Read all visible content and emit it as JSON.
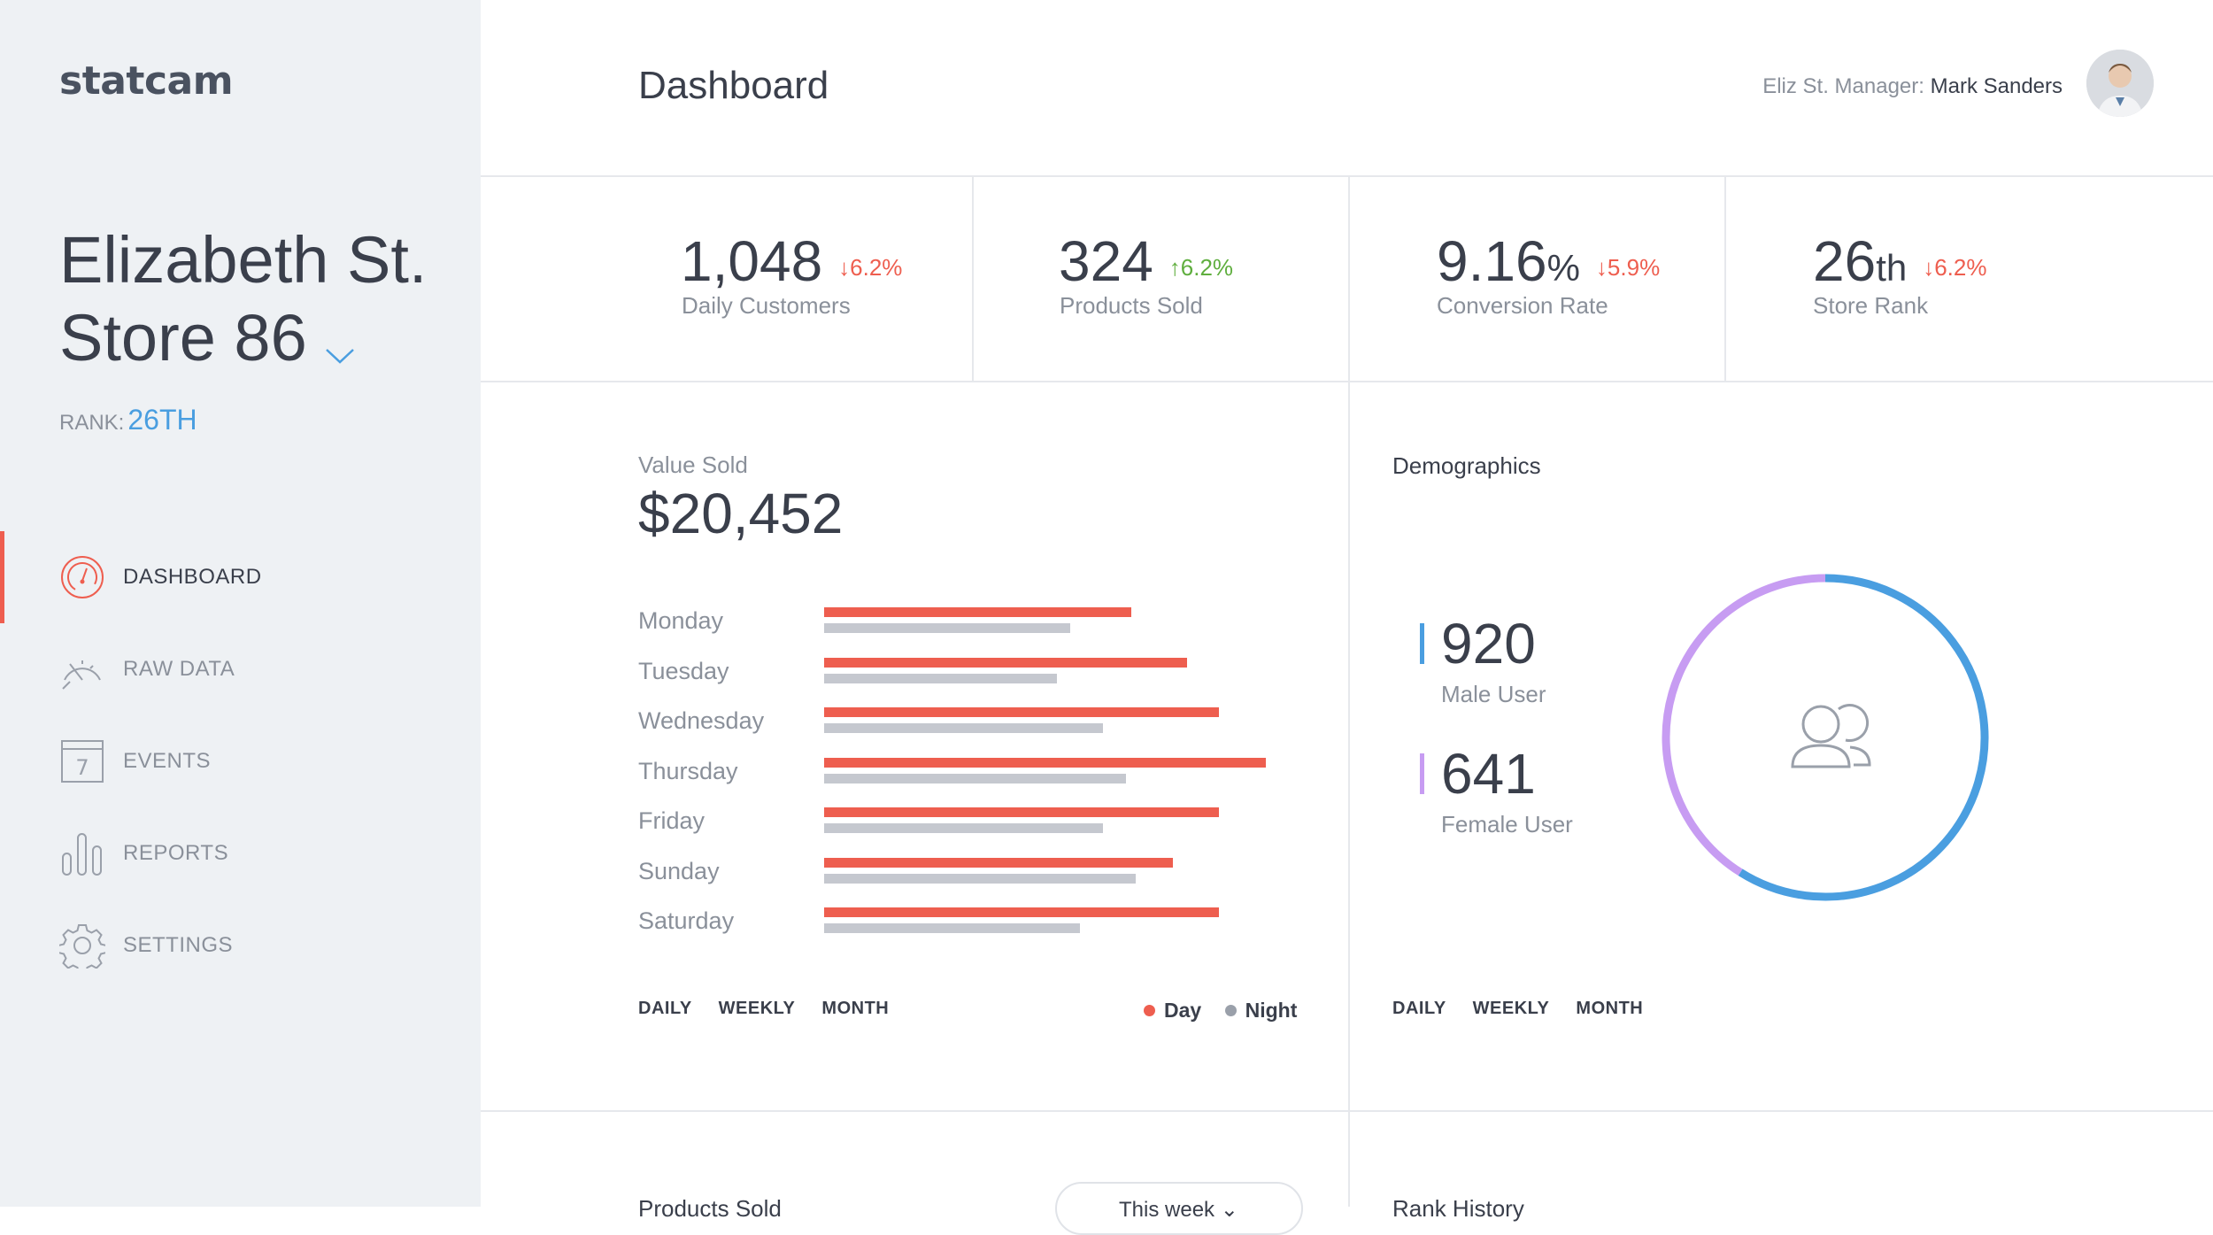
{
  "app": {
    "logo": "statcam"
  },
  "store": {
    "name": "Elizabeth St. Store 86",
    "rank_label": "RANK:",
    "rank_value": "26TH"
  },
  "nav": [
    {
      "label": "DASHBOARD",
      "icon": "gauge-icon",
      "active": true
    },
    {
      "label": "RAW DATA",
      "icon": "speedometer-icon",
      "active": false
    },
    {
      "label": "EVENTS",
      "icon": "calendar-icon",
      "active": false
    },
    {
      "label": "REPORTS",
      "icon": "bar-chart-icon",
      "active": false
    },
    {
      "label": "SETTINGS",
      "icon": "gear-icon",
      "active": false
    }
  ],
  "header": {
    "title": "Dashboard",
    "manager_label": "Eliz St. Manager:",
    "manager_name": "Mark Sanders"
  },
  "kpis": [
    {
      "value": "1,048",
      "unit": "",
      "delta": "6.2%",
      "direction": "down",
      "label": "Daily Customers"
    },
    {
      "value": "324",
      "unit": "",
      "delta": "6.2%",
      "direction": "up",
      "label": "Products Sold"
    },
    {
      "value": "9.16",
      "unit": "%",
      "delta": "5.9%",
      "direction": "down",
      "label": "Conversion Rate"
    },
    {
      "value": "26",
      "unit": "th",
      "delta": "6.2%",
      "direction": "down",
      "label": "Store Rank"
    }
  ],
  "value_sold": {
    "label": "Value Sold",
    "amount": "$20,452",
    "periods": [
      "DAILY",
      "WEEKLY",
      "MONTH"
    ],
    "legend": {
      "day": "Day",
      "night": "Night"
    }
  },
  "chart_data": {
    "type": "bar",
    "orientation": "horizontal",
    "categories": [
      "Monday",
      "Tuesday",
      "Wednesday",
      "Thursday",
      "Friday",
      "Sunday",
      "Saturday"
    ],
    "series": [
      {
        "name": "Day",
        "values": [
          66,
          78,
          85,
          95,
          85,
          75,
          85
        ]
      },
      {
        "name": "Night",
        "values": [
          53,
          50,
          60,
          65,
          60,
          67,
          55
        ]
      }
    ],
    "xlim": [
      0,
      100
    ],
    "grid": false,
    "legend_position": "bottom-right",
    "colors": {
      "Day": "#ee5e4f",
      "Night": "#c5c8cf"
    }
  },
  "demographics": {
    "title": "Demographics",
    "male": {
      "value": "920",
      "label": "Male User",
      "count": 920,
      "color": "#4a9ee0"
    },
    "female": {
      "value": "641",
      "label": "Female User",
      "count": 641,
      "color": "#c79cf2"
    },
    "center_icon": "users-icon",
    "periods": [
      "DAILY",
      "WEEKLY",
      "MONTH"
    ]
  },
  "bottom": {
    "products_sold_title": "Products Sold",
    "week_select": "This week",
    "rank_history_title": "Rank History"
  },
  "colors": {
    "accent_red": "#ee5e4f",
    "accent_blue": "#4a9ee0",
    "accent_green": "#5fae3e",
    "accent_purple": "#c79cf2"
  }
}
